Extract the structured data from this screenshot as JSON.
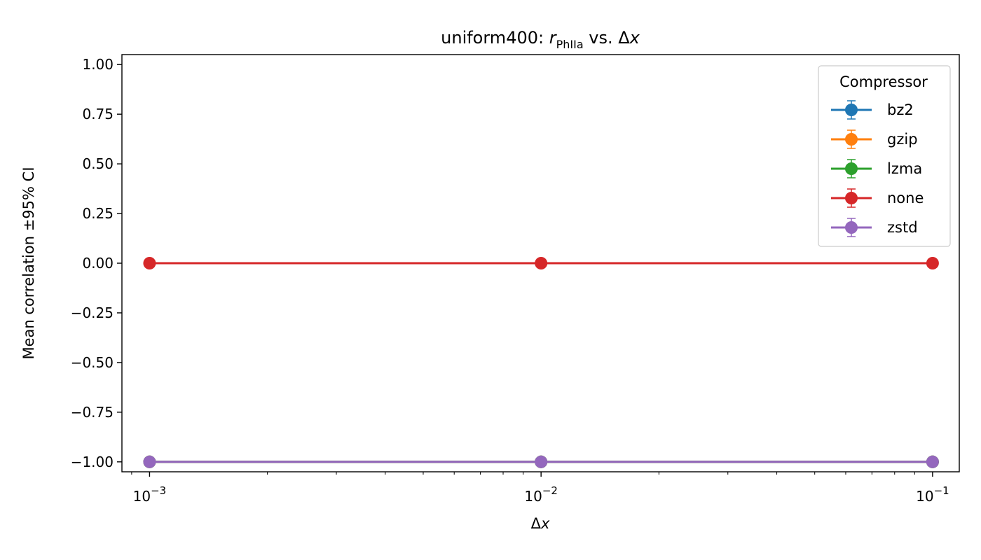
{
  "chart_data": {
    "type": "line",
    "title": {
      "prefix": "uniform400: ",
      "var": "r",
      "sub": "PhIIa",
      "mid": " vs. ",
      "delta": "Δ",
      "xvar": "x"
    },
    "xlabel": {
      "delta": "Δ",
      "var": "x"
    },
    "ylabel": "Mean correlation ±95% CI",
    "x_scale": "log",
    "x": [
      0.001,
      0.01,
      0.1
    ],
    "xlim": [
      0.00085,
      0.117
    ],
    "ylim": [
      -1.05,
      1.05
    ],
    "x_ticks": [
      {
        "value": 0.001,
        "base": "10",
        "exp": "−3"
      },
      {
        "value": 0.01,
        "base": "10",
        "exp": "−2"
      },
      {
        "value": 0.1,
        "base": "10",
        "exp": "−1"
      }
    ],
    "y_ticks": [
      {
        "value": 1.0,
        "label": "1.00"
      },
      {
        "value": 0.75,
        "label": "0.75"
      },
      {
        "value": 0.5,
        "label": "0.50"
      },
      {
        "value": 0.25,
        "label": "0.25"
      },
      {
        "value": 0.0,
        "label": "0.00"
      },
      {
        "value": -0.25,
        "label": "−0.25"
      },
      {
        "value": -0.5,
        "label": "−0.50"
      },
      {
        "value": -0.75,
        "label": "−0.75"
      },
      {
        "value": -1.0,
        "label": "−1.00"
      }
    ],
    "legend": {
      "title": "Compressor",
      "position": "top-right"
    },
    "grid": false,
    "series": [
      {
        "name": "bz2",
        "color": "#1f77b4",
        "values": [
          -1.0,
          -1.0,
          -1.0
        ]
      },
      {
        "name": "gzip",
        "color": "#ff7f0e",
        "values": [
          -1.0,
          -1.0,
          -1.0
        ]
      },
      {
        "name": "lzma",
        "color": "#2ca02c",
        "values": [
          -1.0,
          -1.0,
          -1.0
        ]
      },
      {
        "name": "none",
        "color": "#d62728",
        "values": [
          0.0,
          0.0,
          0.0
        ]
      },
      {
        "name": "zstd",
        "color": "#9467bd",
        "values": [
          -1.0,
          -1.0,
          -1.0
        ]
      }
    ]
  }
}
